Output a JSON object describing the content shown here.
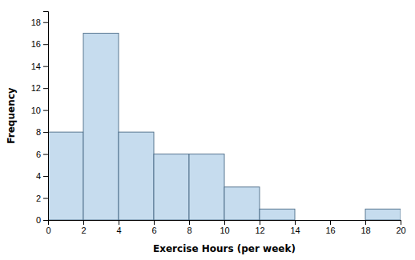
{
  "chart_data": {
    "type": "histogram",
    "bins": [
      0,
      2,
      4,
      6,
      8,
      10,
      12,
      14,
      16,
      18,
      20
    ],
    "values": [
      8,
      17,
      8,
      6,
      6,
      3,
      1,
      0,
      0,
      1
    ],
    "color": "#c6dcee",
    "xlabel": "Exercise Hours (per week)",
    "ylabel": "Frequency",
    "xlim": [
      0,
      20
    ],
    "ylim": [
      0,
      19
    ],
    "xticks": [
      0,
      2,
      4,
      6,
      8,
      10,
      12,
      14,
      16,
      18,
      20
    ],
    "yticks": [
      0,
      2,
      4,
      6,
      8,
      10,
      12,
      14,
      16,
      18
    ]
  }
}
